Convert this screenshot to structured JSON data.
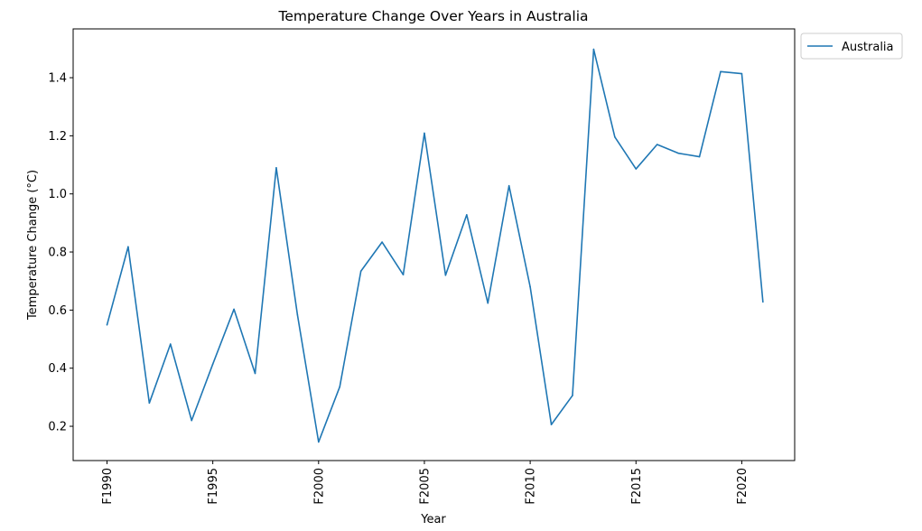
{
  "chart_data": {
    "type": "line",
    "title": "Temperature Change Over Years in Australia",
    "xlabel": "Year",
    "ylabel": "Temperature Change (°C)",
    "x": [
      1990,
      1991,
      1992,
      1993,
      1994,
      1995,
      1996,
      1997,
      1998,
      1999,
      2000,
      2001,
      2002,
      2003,
      2004,
      2005,
      2006,
      2007,
      2008,
      2009,
      2010,
      2011,
      2012,
      2013,
      2014,
      2015,
      2016,
      2017,
      2018,
      2019,
      2020,
      2021
    ],
    "xticks": [
      {
        "value": 1990,
        "label": "F1990"
      },
      {
        "value": 1995,
        "label": "F1995"
      },
      {
        "value": 2000,
        "label": "F2000"
      },
      {
        "value": 2005,
        "label": "F2005"
      },
      {
        "value": 2010,
        "label": "F2010"
      },
      {
        "value": 2015,
        "label": "F2015"
      },
      {
        "value": 2020,
        "label": "F2020"
      }
    ],
    "yticks": [
      {
        "value": 0.2,
        "label": "0.2"
      },
      {
        "value": 0.4,
        "label": "0.4"
      },
      {
        "value": 0.6,
        "label": "0.6"
      },
      {
        "value": 0.8,
        "label": "0.8"
      },
      {
        "value": 1.0,
        "label": "1.0"
      },
      {
        "value": 1.2,
        "label": "1.2"
      },
      {
        "value": 1.4,
        "label": "1.4"
      }
    ],
    "xlim": [
      1988.4,
      2022.5
    ],
    "ylim": [
      0.082,
      1.568
    ],
    "grid": false,
    "legend_position": "outside-top-right",
    "series": [
      {
        "name": "Australia",
        "color": "#1f77b4",
        "values": [
          0.549,
          0.818,
          0.28,
          0.483,
          0.22,
          0.414,
          0.603,
          0.382,
          1.09,
          0.584,
          0.146,
          0.336,
          0.734,
          0.834,
          0.722,
          1.209,
          0.72,
          0.928,
          0.624,
          1.028,
          0.68,
          0.206,
          0.306,
          1.498,
          1.196,
          1.086,
          1.17,
          1.14,
          1.128,
          1.421,
          1.414,
          0.628
        ]
      }
    ]
  }
}
